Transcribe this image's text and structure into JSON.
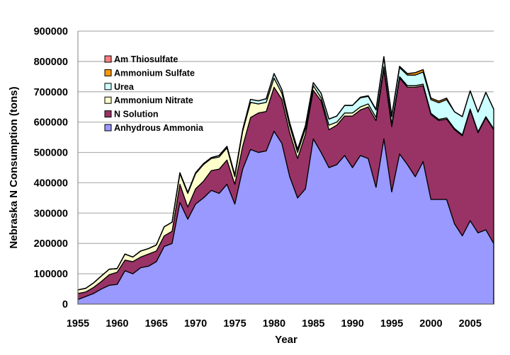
{
  "chart_data": {
    "type": "area",
    "stacked": true,
    "title": "",
    "xlabel": "Year",
    "ylabel": "Nebraska N Consumption (tons)",
    "xlim": [
      1955,
      2008
    ],
    "ylim": [
      0,
      900000
    ],
    "x_ticks": [
      "1955",
      "1960",
      "1965",
      "1970",
      "1975",
      "1980",
      "1985",
      "1990",
      "1995",
      "2000",
      "2005"
    ],
    "y_ticks": [
      "0",
      "100000",
      "200000",
      "300000",
      "400000",
      "500000",
      "600000",
      "700000",
      "800000",
      "900000"
    ],
    "grid": "horizontal",
    "legend_position": "top-left",
    "x": [
      1955,
      1956,
      1957,
      1958,
      1959,
      1960,
      1961,
      1962,
      1963,
      1964,
      1965,
      1966,
      1967,
      1968,
      1969,
      1970,
      1971,
      1972,
      1973,
      1974,
      1975,
      1976,
      1977,
      1978,
      1979,
      1980,
      1981,
      1982,
      1983,
      1984,
      1985,
      1986,
      1987,
      1988,
      1989,
      1990,
      1991,
      1992,
      1993,
      1994,
      1995,
      1996,
      1997,
      1998,
      1999,
      2000,
      2001,
      2002,
      2003,
      2004,
      2005,
      2006,
      2007,
      2008
    ],
    "series": [
      {
        "name": "Anhydrous Ammonia",
        "color": "#9999ff",
        "values": [
          15000,
          25000,
          35000,
          50000,
          62000,
          65000,
          110000,
          100000,
          120000,
          125000,
          140000,
          190000,
          200000,
          335000,
          280000,
          330000,
          350000,
          375000,
          365000,
          395000,
          330000,
          445000,
          510000,
          500000,
          505000,
          570000,
          530000,
          420000,
          350000,
          380000,
          545000,
          500000,
          450000,
          460000,
          490000,
          450000,
          490000,
          480000,
          385000,
          545000,
          370000,
          495000,
          460000,
          420000,
          470000,
          345000,
          345000,
          345000,
          265000,
          225000,
          275000,
          235000,
          245000,
          200000
        ]
      },
      {
        "name": "N Solution",
        "color": "#993366",
        "values": [
          20000,
          15000,
          20000,
          25000,
          35000,
          40000,
          35000,
          40000,
          35000,
          40000,
          35000,
          35000,
          40000,
          60000,
          40000,
          50000,
          55000,
          65000,
          80000,
          80000,
          65000,
          75000,
          105000,
          130000,
          130000,
          145000,
          145000,
          145000,
          130000,
          180000,
          160000,
          170000,
          125000,
          130000,
          130000,
          170000,
          150000,
          170000,
          220000,
          230000,
          215000,
          250000,
          255000,
          295000,
          250000,
          280000,
          260000,
          265000,
          310000,
          330000,
          365000,
          330000,
          370000,
          375000
        ]
      },
      {
        "name": "Ammonium Nitrate",
        "color": "#ffffcc",
        "values": [
          12000,
          12000,
          15000,
          18000,
          18000,
          12000,
          20000,
          15000,
          20000,
          18000,
          20000,
          30000,
          30000,
          35000,
          45000,
          50000,
          55000,
          40000,
          40000,
          40000,
          25000,
          50000,
          50000,
          30000,
          30000,
          30000,
          20000,
          22000,
          20000,
          18000,
          15000,
          10000,
          15000,
          10000,
          10000,
          10000,
          10000,
          10000,
          10000,
          8000,
          8000,
          5000,
          5000,
          5000,
          5000,
          4000,
          4000,
          4000,
          4000,
          3000,
          3000,
          3000,
          3000,
          3000
        ]
      },
      {
        "name": "Urea",
        "color": "#ccffff",
        "values": [
          0,
          0,
          0,
          0,
          0,
          0,
          0,
          0,
          0,
          0,
          0,
          0,
          0,
          3000,
          3000,
          3000,
          3000,
          3000,
          5000,
          5000,
          5000,
          5000,
          10000,
          10000,
          12000,
          15000,
          12000,
          10000,
          10000,
          10000,
          10000,
          15000,
          20000,
          20000,
          25000,
          25000,
          30000,
          25000,
          25000,
          30000,
          25000,
          30000,
          35000,
          35000,
          40000,
          45000,
          55000,
          60000,
          55000,
          60000,
          60000,
          65000,
          80000,
          65000
        ]
      },
      {
        "name": "Ammonium Sulfate",
        "color": "#ff9900",
        "values": [
          0,
          0,
          0,
          0,
          0,
          0,
          0,
          0,
          0,
          0,
          0,
          0,
          0,
          0,
          0,
          0,
          0,
          0,
          0,
          0,
          0,
          0,
          0,
          0,
          0,
          0,
          0,
          0,
          0,
          0,
          0,
          0,
          0,
          0,
          0,
          0,
          2000,
          2000,
          2000,
          3000,
          3000,
          4000,
          5000,
          8000,
          8000,
          5000,
          5000,
          5000,
          0,
          0,
          0,
          0,
          0,
          0
        ]
      },
      {
        "name": "Am Thiosulfate",
        "color": "#ff8080",
        "values": [
          0,
          0,
          0,
          0,
          0,
          0,
          0,
          0,
          0,
          0,
          0,
          0,
          0,
          0,
          0,
          0,
          0,
          0,
          0,
          0,
          0,
          0,
          0,
          0,
          0,
          0,
          0,
          0,
          0,
          0,
          0,
          0,
          0,
          0,
          0,
          0,
          0,
          0,
          0,
          0,
          0,
          0,
          0,
          0,
          0,
          0,
          0,
          0,
          0,
          0,
          0,
          0,
          0,
          0
        ]
      }
    ]
  }
}
